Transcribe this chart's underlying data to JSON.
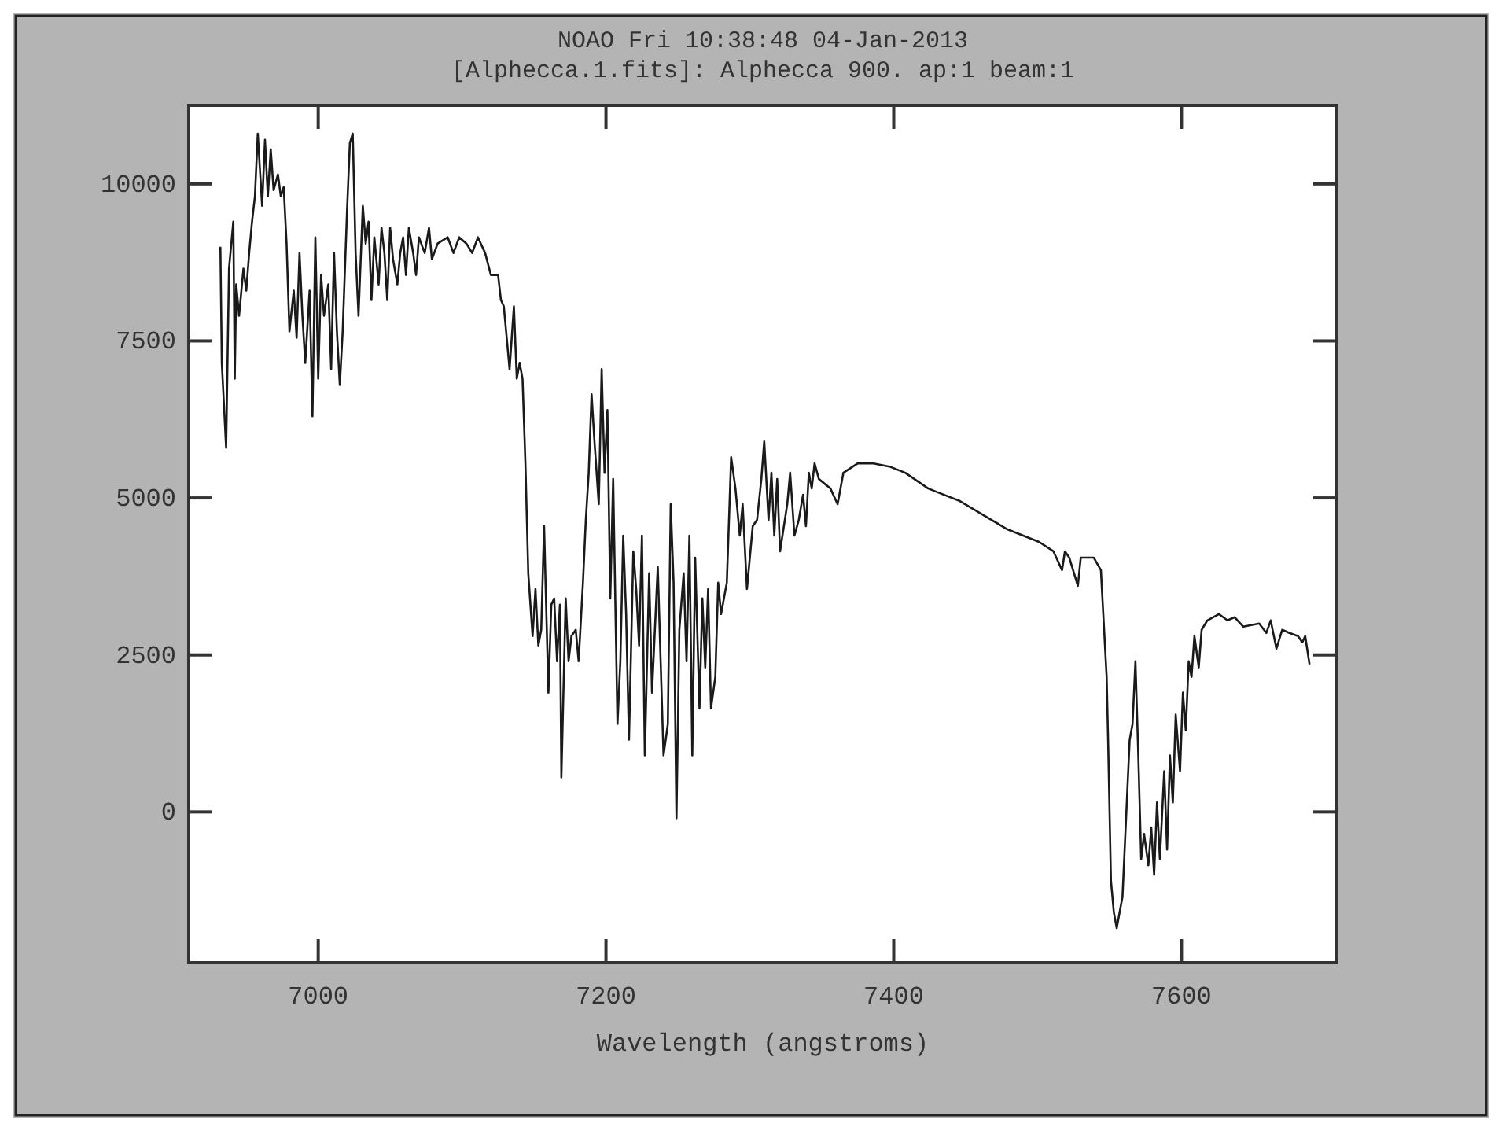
{
  "chart_data": {
    "type": "line",
    "title": "NOAO Fri 10:38:48 04-Jan-2013",
    "subtitle": "[Alphecca.1.fits]: Alphecca 900. ap:1 beam:1",
    "xlabel": "Wavelength (angstroms)",
    "xlim": [
      6910,
      7708
    ],
    "ylim": [
      -2400,
      11250
    ],
    "xticks": [
      7000,
      7200,
      7400,
      7600
    ],
    "yticks": [
      0,
      2500,
      5000,
      7500,
      10000
    ],
    "grid": false,
    "series": [
      {
        "color": "#1a1a1a",
        "x": [
          6932,
          6933,
          6936,
          6938,
          6941,
          6942,
          6943,
          6945,
          6948,
          6950,
          6952,
          6954,
          6956,
          6958,
          6961,
          6963,
          6965,
          6967,
          6969,
          6972,
          6974,
          6976,
          6978,
          6980,
          6983,
          6985,
          6987,
          6989,
          6991,
          6994,
          6996,
          6998,
          7000,
          7002,
          7004,
          7007,
          7009,
          7011,
          7013,
          7015,
          7017,
          7020,
          7022,
          7024,
          7026,
          7028,
          7031,
          7033,
          7035,
          7037,
          7039,
          7042,
          7044,
          7046,
          7048,
          7050,
          7052,
          7055,
          7057,
          7059,
          7061,
          7063,
          7066,
          7068,
          7070,
          7074,
          7077,
          7079,
          7083,
          7090,
          7094,
          7098,
          7103,
          7107,
          7111,
          7116,
          7120,
          7125,
          7127,
          7129,
          7131,
          7133,
          7136,
          7138,
          7140,
          7142,
          7144,
          7146,
          7149,
          7151,
          7153,
          7155,
          7157,
          7160,
          7162,
          7164,
          7166,
          7168,
          7169,
          7172,
          7174,
          7176,
          7179,
          7181,
          7184,
          7186,
          7188,
          7190,
          7192,
          7195,
          7197,
          7199,
          7201,
          7203,
          7205,
          7208,
          7210,
          7212,
          7214,
          7216,
          7219,
          7221,
          7223,
          7225,
          7227,
          7230,
          7232,
          7234,
          7236,
          7238,
          7240,
          7243,
          7245,
          7247,
          7249,
          7251,
          7254,
          7256,
          7258,
          7260,
          7262,
          7265,
          7267,
          7269,
          7271,
          7273,
          7276,
          7278,
          7280,
          7284,
          7287,
          7290,
          7293,
          7295,
          7298,
          7302,
          7305,
          7308,
          7310,
          7313,
          7315,
          7317,
          7319,
          7321,
          7326,
          7328,
          7331,
          7334,
          7337,
          7339,
          7341,
          7343,
          7345,
          7348,
          7356,
          7361,
          7365,
          7375,
          7386,
          7397,
          7408,
          7424,
          7435,
          7446,
          7457,
          7468,
          7479,
          7490,
          7501,
          7511,
          7517,
          7519,
          7522,
          7528,
          7530,
          7539,
          7544,
          7548,
          7549,
          7551,
          7553,
          7555,
          7557,
          7559,
          7561,
          7564,
          7566,
          7568,
          7570,
          7572,
          7574,
          7577,
          7579,
          7581,
          7583,
          7585,
          7588,
          7590,
          7592,
          7594,
          7596,
          7599,
          7601,
          7603,
          7605,
          7607,
          7609,
          7612,
          7614,
          7618,
          7626,
          7632,
          7637,
          7643,
          7654,
          7659,
          7662,
          7666,
          7670,
          7675,
          7681,
          7684,
          7686,
          7689
        ],
        "values": [
          9000,
          7150,
          5800,
          8650,
          9400,
          6900,
          8400,
          7900,
          8650,
          8300,
          8900,
          9400,
          9800,
          10800,
          9650,
          10700,
          9800,
          10550,
          9900,
          10150,
          9800,
          9950,
          9050,
          7650,
          8300,
          7550,
          8900,
          7900,
          7150,
          8300,
          6300,
          9150,
          6900,
          8550,
          7900,
          8400,
          7050,
          8900,
          7650,
          6800,
          7650,
          9550,
          10650,
          10800,
          8900,
          7900,
          9650,
          9050,
          9400,
          8150,
          9150,
          8400,
          9300,
          8900,
          8150,
          9300,
          8800,
          8400,
          8900,
          9150,
          8550,
          9300,
          8900,
          8550,
          9150,
          8900,
          9300,
          8800,
          9050,
          9150,
          8900,
          9150,
          9050,
          8900,
          9150,
          8900,
          8550,
          8550,
          8150,
          8050,
          7550,
          7050,
          8050,
          6900,
          7150,
          6900,
          5550,
          3800,
          2800,
          3550,
          2650,
          2900,
          4550,
          1900,
          3300,
          3400,
          2400,
          3300,
          550,
          3400,
          2400,
          2800,
          2900,
          2400,
          3650,
          4650,
          5400,
          6650,
          5900,
          4900,
          7050,
          5400,
          6400,
          3400,
          5300,
          1400,
          2400,
          4400,
          3150,
          1150,
          4150,
          3550,
          2650,
          4400,
          900,
          3800,
          1900,
          2900,
          3900,
          2400,
          900,
          1400,
          4900,
          3650,
          -100,
          2900,
          3800,
          2400,
          4400,
          900,
          4050,
          1650,
          3400,
          2300,
          3550,
          1650,
          2150,
          3650,
          3150,
          3650,
          5650,
          5150,
          4400,
          4900,
          3550,
          4550,
          4650,
          5300,
          5900,
          4650,
          5400,
          4400,
          5300,
          4150,
          4900,
          5400,
          4400,
          4650,
          5050,
          4550,
          5400,
          5150,
          5550,
          5300,
          5150,
          4900,
          5400,
          5550,
          5550,
          5500,
          5400,
          5150,
          5050,
          4950,
          4800,
          4650,
          4500,
          4400,
          4300,
          4150,
          3850,
          4150,
          4050,
          3600,
          4050,
          4050,
          3850,
          2150,
          1150,
          -1100,
          -1600,
          -1850,
          -1600,
          -1350,
          -350,
          1150,
          1400,
          2400,
          900,
          -750,
          -350,
          -850,
          -250,
          -1000,
          150,
          -750,
          650,
          -600,
          900,
          150,
          1550,
          650,
          1900,
          1300,
          2400,
          2150,
          2800,
          2300,
          2900,
          3050,
          3150,
          3050,
          3100,
          2950,
          3000,
          2850,
          3050,
          2600,
          2900,
          2850,
          2800,
          2700,
          2800,
          2350
        ]
      }
    ]
  }
}
